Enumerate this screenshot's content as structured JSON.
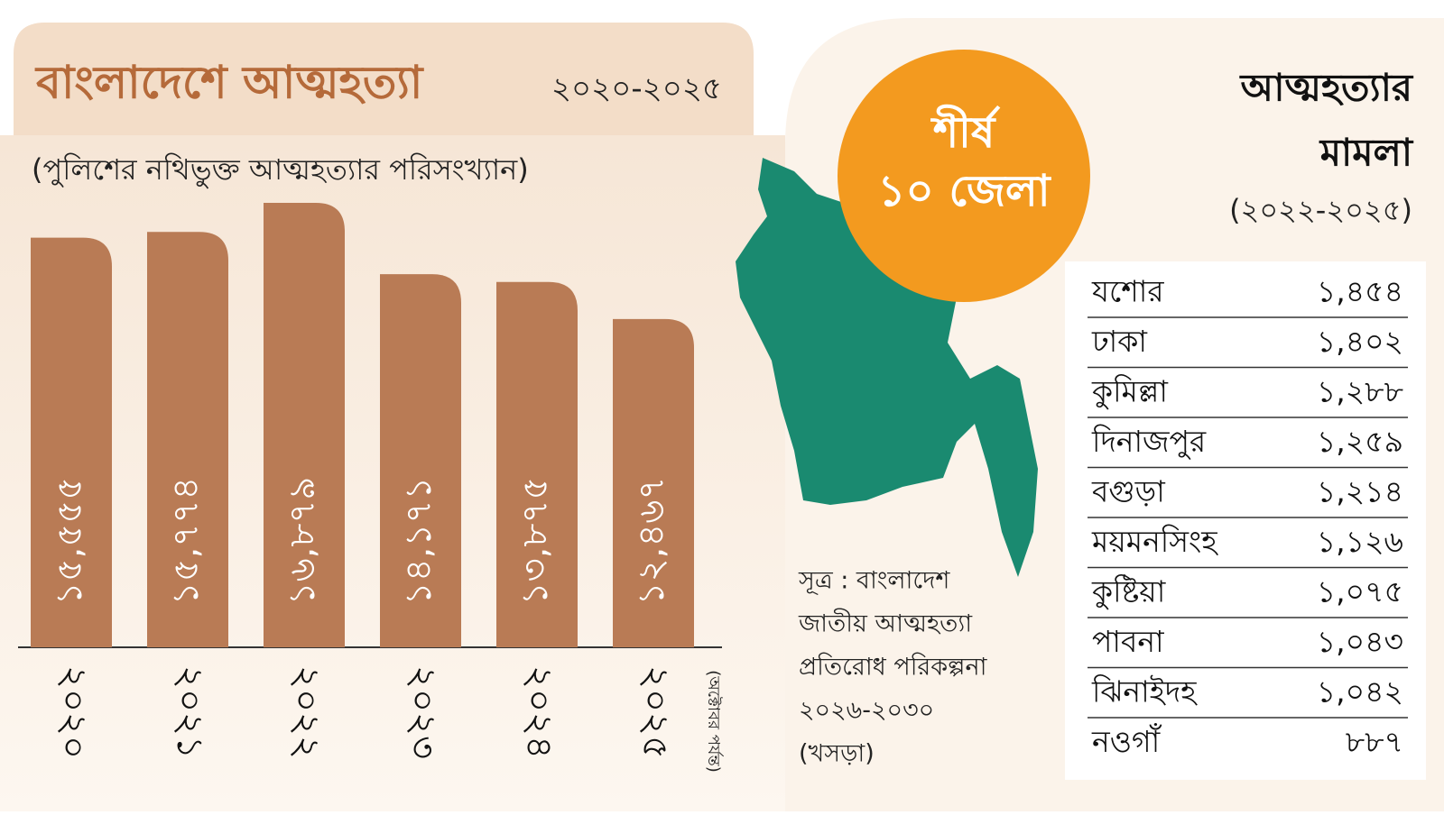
{
  "chart_data": {
    "type": "bar",
    "title": "বাংলাদেশে আত্মহত্যা",
    "title_years": "২০২০-২০২৫",
    "subtitle": "(পুলিশের নথিভুক্ত আত্মহত্যার পরিসংখ্যান)",
    "categories": [
      "২০২০",
      "২০২১",
      "২০২২",
      "২০২৩",
      "২০২৪",
      "২০২৫"
    ],
    "category_note": "(অক্টোবর পর্যন্ত)",
    "values": [
      15555,
      15774,
      16879,
      14171,
      13875,
      12467
    ],
    "value_labels": [
      "১৫,৫৫৫",
      "১৫,৭৭৪",
      "১৬,৮৭৯",
      "১৪,১৭১",
      "১৩,৮৭৫",
      "১২,৪৬৭"
    ],
    "color": "#b97b55"
  },
  "map": {
    "badge_line1": "শীর্ষ",
    "badge_line2": "১০ জেলা",
    "source": [
      "সূত্র : বাংলাদেশ",
      "জাতীয় আত্মহত্যা",
      "প্রতিরোধ পরিকল্পনা",
      "২০২৬-২০৩০",
      "(খসড়া)"
    ]
  },
  "table": {
    "title_line1": "আত্মহত্যার",
    "title_line2": "মামলা",
    "period": "(২০২২-২০২৫)",
    "rows": [
      [
        "যশোর",
        "১,৪৫৪"
      ],
      [
        "ঢাকা",
        "১,৪০২"
      ],
      [
        "কুমিল্লা",
        "১,২৮৮"
      ],
      [
        "দিনাজপুর",
        "১,২৫৯"
      ],
      [
        "বগুড়া",
        "১,২১৪"
      ],
      [
        "ময়মনসিংহ",
        "১,১২৬"
      ],
      [
        "কুষ্টিয়া",
        "১,০৭৫"
      ],
      [
        "পাবনা",
        "১,০৪৩"
      ],
      [
        "ঝিনাইদহ",
        "১,০৪২"
      ],
      [
        "নওগাঁ",
        "৮৮৭"
      ]
    ]
  }
}
